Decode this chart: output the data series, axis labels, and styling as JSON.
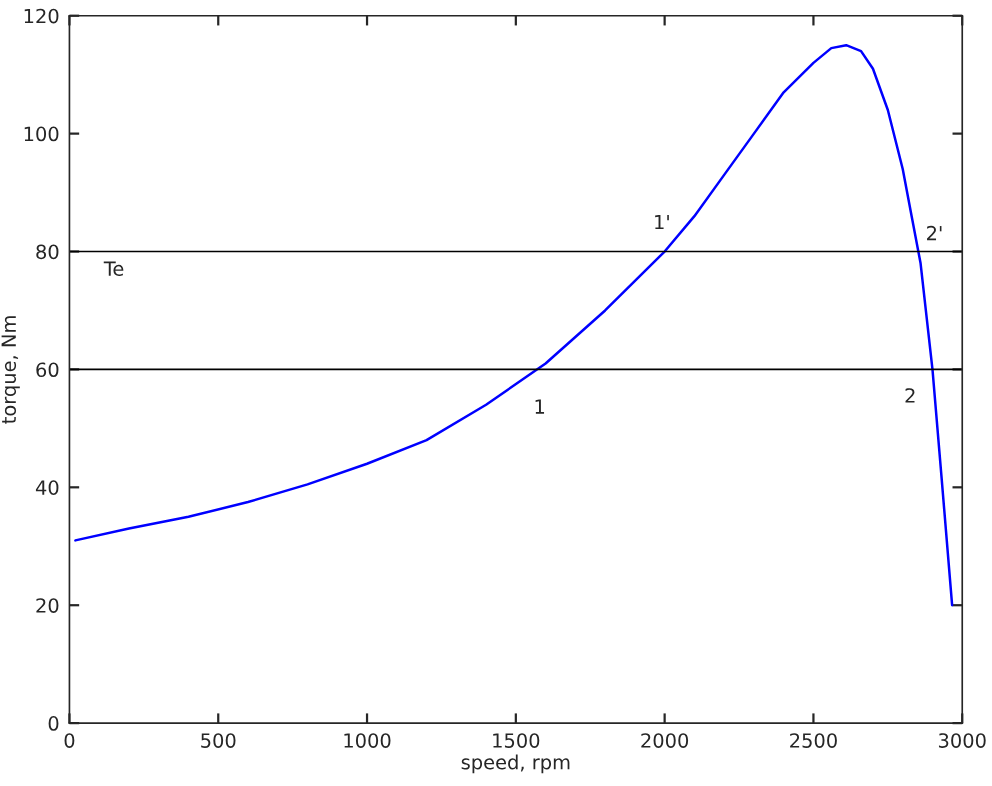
{
  "chart_data": {
    "type": "line",
    "xlabel": "speed, rpm",
    "ylabel": "torque, Nm",
    "x": [
      20,
      200,
      400,
      600,
      800,
      1000,
      1200,
      1400,
      1600,
      1800,
      2000,
      2100,
      2200,
      2300,
      2400,
      2500,
      2560,
      2610,
      2660,
      2700,
      2750,
      2800,
      2830,
      2860,
      2900,
      2930,
      2966
    ],
    "series": [
      {
        "color": "#0000ff",
        "values": [
          31,
          33,
          35,
          37.5,
          40.5,
          44,
          48,
          54,
          61,
          70,
          80,
          86,
          93,
          100,
          107,
          112,
          114.5,
          115,
          114,
          111,
          104,
          94,
          86,
          78,
          60,
          42,
          20
        ]
      }
    ],
    "xlim": [
      0,
      3000
    ],
    "ylim": [
      0,
      120
    ],
    "xticks": [
      0,
      500,
      1000,
      1500,
      2000,
      2500,
      3000
    ],
    "yticks": [
      0,
      20,
      40,
      60,
      80,
      100,
      120
    ],
    "ref_lines": [
      {
        "axis": "y",
        "value": 80,
        "color": "#000000"
      },
      {
        "axis": "y",
        "value": 60,
        "color": "#000000"
      }
    ],
    "annotations": [
      "Te",
      {
        "text": "1",
        "x": 1580,
        "y": 60
      },
      {
        "text": "1'",
        "x": 2000,
        "y": 80
      },
      {
        "text": "2",
        "x": 2900,
        "y": 60
      },
      {
        "text": "2'",
        "x": 2860,
        "y": 80
      }
    ],
    "grid": false,
    "legend": false
  }
}
